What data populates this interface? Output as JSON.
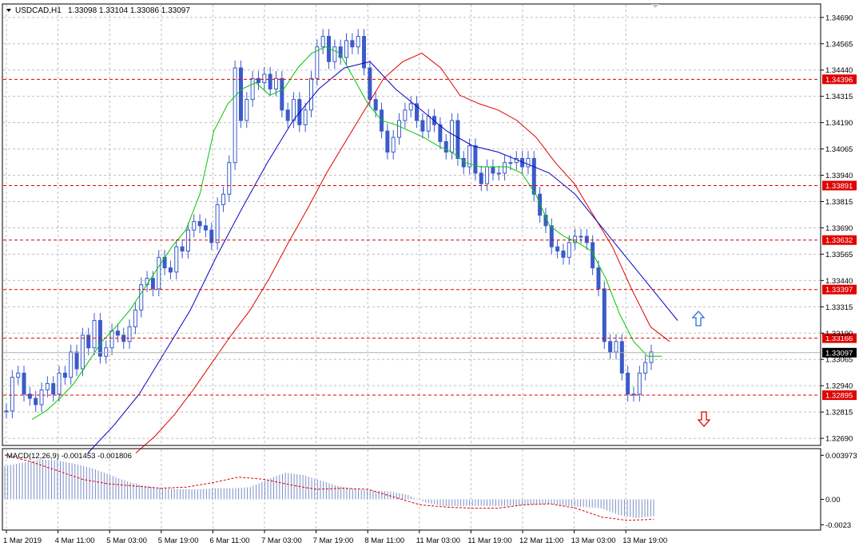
{
  "header": {
    "symbol": "USDCAD,H1",
    "ohlc": "1.33098 1.33104 1.33086 1.33097",
    "menu_icon": "triangle-down-icon"
  },
  "macd": {
    "label": "MACD(12,26,9) -0.001453 -0.001806",
    "ticks": [
      "0.003973",
      "0.00",
      "-0.0023"
    ]
  },
  "colors": {
    "background": "#ffffff",
    "grid": "#c0c0c0",
    "candle": "#3a5bc8",
    "ma_fast": "#00c800",
    "ma_mid": "#e00000",
    "ma_slow": "#0000c8",
    "level": "#e00000",
    "price_tag": "#000000",
    "up_arrow": "#2a6de0",
    "down_arrow": "#e00000",
    "macd_hist": "#7a8ec8",
    "macd_signal": "#e00000"
  },
  "chart_data": {
    "type": "candlestick",
    "title": "USDCAD,H1",
    "y_ticks": [
      "1.34690",
      "1.34565",
      "1.34440",
      "1.34315",
      "1.34190",
      "1.34065",
      "1.33940",
      "1.33815",
      "1.33690",
      "1.33565",
      "1.33440",
      "1.33315",
      "1.33190",
      "1.33065",
      "1.32940",
      "1.32815",
      "1.32690"
    ],
    "ylim": [
      1.3266,
      1.3475
    ],
    "x_ticks": [
      "1 Mar 2019",
      "4 Mar 11:00",
      "5 Mar 03:00",
      "5 Mar 19:00",
      "6 Mar 11:00",
      "7 Mar 03:00",
      "7 Mar 19:00",
      "8 Mar 11:00",
      "11 Mar 03:00",
      "11 Mar 19:00",
      "12 Mar 11:00",
      "13 Mar 03:00",
      "13 Mar 19:00"
    ],
    "levels": [
      {
        "label": "1.34396",
        "value": 1.34396
      },
      {
        "label": "1.33891",
        "value": 1.33891
      },
      {
        "label": "1.33632",
        "value": 1.33632
      },
      {
        "label": "1.33397",
        "value": 1.33397
      },
      {
        "label": "1.33166",
        "value": 1.33166
      },
      {
        "label": "1.32895",
        "value": 1.32895
      }
    ],
    "current_price": {
      "label": "1.33097",
      "value": 1.33097
    },
    "series": [
      {
        "kind": "price",
        "values": [
          1.3282,
          1.3298,
          1.33,
          1.329,
          1.3288,
          1.3285,
          1.3292,
          1.3295,
          1.329,
          1.33,
          1.3298,
          1.331,
          1.3302,
          1.3318,
          1.3312,
          1.3325,
          1.3308,
          1.3312,
          1.332,
          1.3318,
          1.3315,
          1.3322,
          1.333,
          1.3342,
          1.3345,
          1.334,
          1.3355,
          1.335,
          1.3348,
          1.336,
          1.3358,
          1.3368,
          1.3372,
          1.337,
          1.3368,
          1.3362,
          1.338,
          1.3385,
          1.34,
          1.3445,
          1.342,
          1.343,
          1.344,
          1.3438,
          1.3442,
          1.3435,
          1.344,
          1.3425,
          1.342,
          1.343,
          1.3418,
          1.3425,
          1.344,
          1.3455,
          1.346,
          1.3448,
          1.3455,
          1.345,
          1.3458,
          1.3455,
          1.346,
          1.3445,
          1.343,
          1.3425,
          1.3415,
          1.3405,
          1.3412,
          1.342,
          1.3425,
          1.3428,
          1.342,
          1.3415,
          1.3422,
          1.3418,
          1.341,
          1.3405,
          1.342,
          1.3402,
          1.3398,
          1.3408,
          1.3395,
          1.339,
          1.3398,
          1.3395,
          1.3395,
          1.34,
          1.34,
          1.3402,
          1.3398,
          1.3402,
          1.3385,
          1.3375,
          1.337,
          1.336,
          1.3358,
          1.3355,
          1.3362,
          1.3365,
          1.3365,
          1.3362,
          1.335,
          1.334,
          1.3315,
          1.331,
          1.3315,
          1.33,
          1.329,
          1.329,
          1.33,
          1.3305,
          1.331
        ]
      },
      {
        "kind": "ma_fast",
        "values": [
          1.3278,
          1.3282,
          1.3288,
          1.3295,
          1.3305,
          1.3315,
          1.3322,
          1.333,
          1.334,
          1.335,
          1.336,
          1.3368,
          1.3385,
          1.3415,
          1.3428,
          1.3435,
          1.3438,
          1.3432,
          1.3435,
          1.3445,
          1.3452,
          1.3455,
          1.3452,
          1.344,
          1.3428,
          1.342,
          1.3418,
          1.3415,
          1.3412,
          1.3408,
          1.3405,
          1.34,
          1.3398,
          1.3398,
          1.3398,
          1.3395,
          1.3385,
          1.337,
          1.3365,
          1.3362,
          1.3358,
          1.3345,
          1.3328,
          1.3315,
          1.3308,
          1.3308
        ]
      },
      {
        "kind": "ma_mid",
        "values": [
          1.3262,
          1.327,
          1.328,
          1.3292,
          1.3305,
          1.3318,
          1.333,
          1.3345,
          1.3362,
          1.3378,
          1.3395,
          1.341,
          1.3425,
          1.344,
          1.3448,
          1.3452,
          1.3445,
          1.3432,
          1.3428,
          1.3425,
          1.342,
          1.3412,
          1.34,
          1.339,
          1.3375,
          1.336,
          1.334,
          1.3322,
          1.3315
        ]
      },
      {
        "kind": "ma_slow",
        "values": [
          1.3262,
          1.3275,
          1.329,
          1.331,
          1.333,
          1.3355,
          1.3378,
          1.34,
          1.342,
          1.3435,
          1.3445,
          1.3448,
          1.3435,
          1.3425,
          1.3415,
          1.3408,
          1.3405,
          1.34,
          1.3395,
          1.3385,
          1.337,
          1.3355,
          1.334,
          1.3325
        ]
      }
    ],
    "macd_hist": [
      0.003,
      0.0033,
      0.0036,
      0.0035,
      0.0032,
      0.0028,
      0.0022,
      0.0016,
      0.0012,
      0.001,
      0.0009,
      0.0009,
      0.001,
      0.001,
      0.0011,
      0.0018,
      0.0024,
      0.0022,
      0.0017,
      0.0012,
      0.0009,
      0.0008,
      0.0007,
      0.0004,
      -0.0003,
      -0.0006,
      -0.0006,
      -0.0006,
      -0.0006,
      -0.0006,
      -0.0005,
      -0.0004,
      -0.0006,
      -0.0007,
      -0.0008,
      -0.0014,
      -0.0017,
      -0.0015
    ],
    "macd_signal": [
      0.004,
      0.0034,
      0.0026,
      0.0018,
      0.0014,
      0.0012,
      0.001,
      0.0011,
      0.0015,
      0.002,
      0.0018,
      0.0013,
      0.0009,
      0.001,
      0.0009,
      0.0002,
      -0.0005,
      -0.0007,
      -0.0008,
      -0.0008,
      -0.0005,
      -0.0004,
      -0.0008,
      -0.0016,
      -0.0019,
      -0.0018
    ],
    "macd_ylim": [
      -0.0027,
      0.0045
    ]
  }
}
